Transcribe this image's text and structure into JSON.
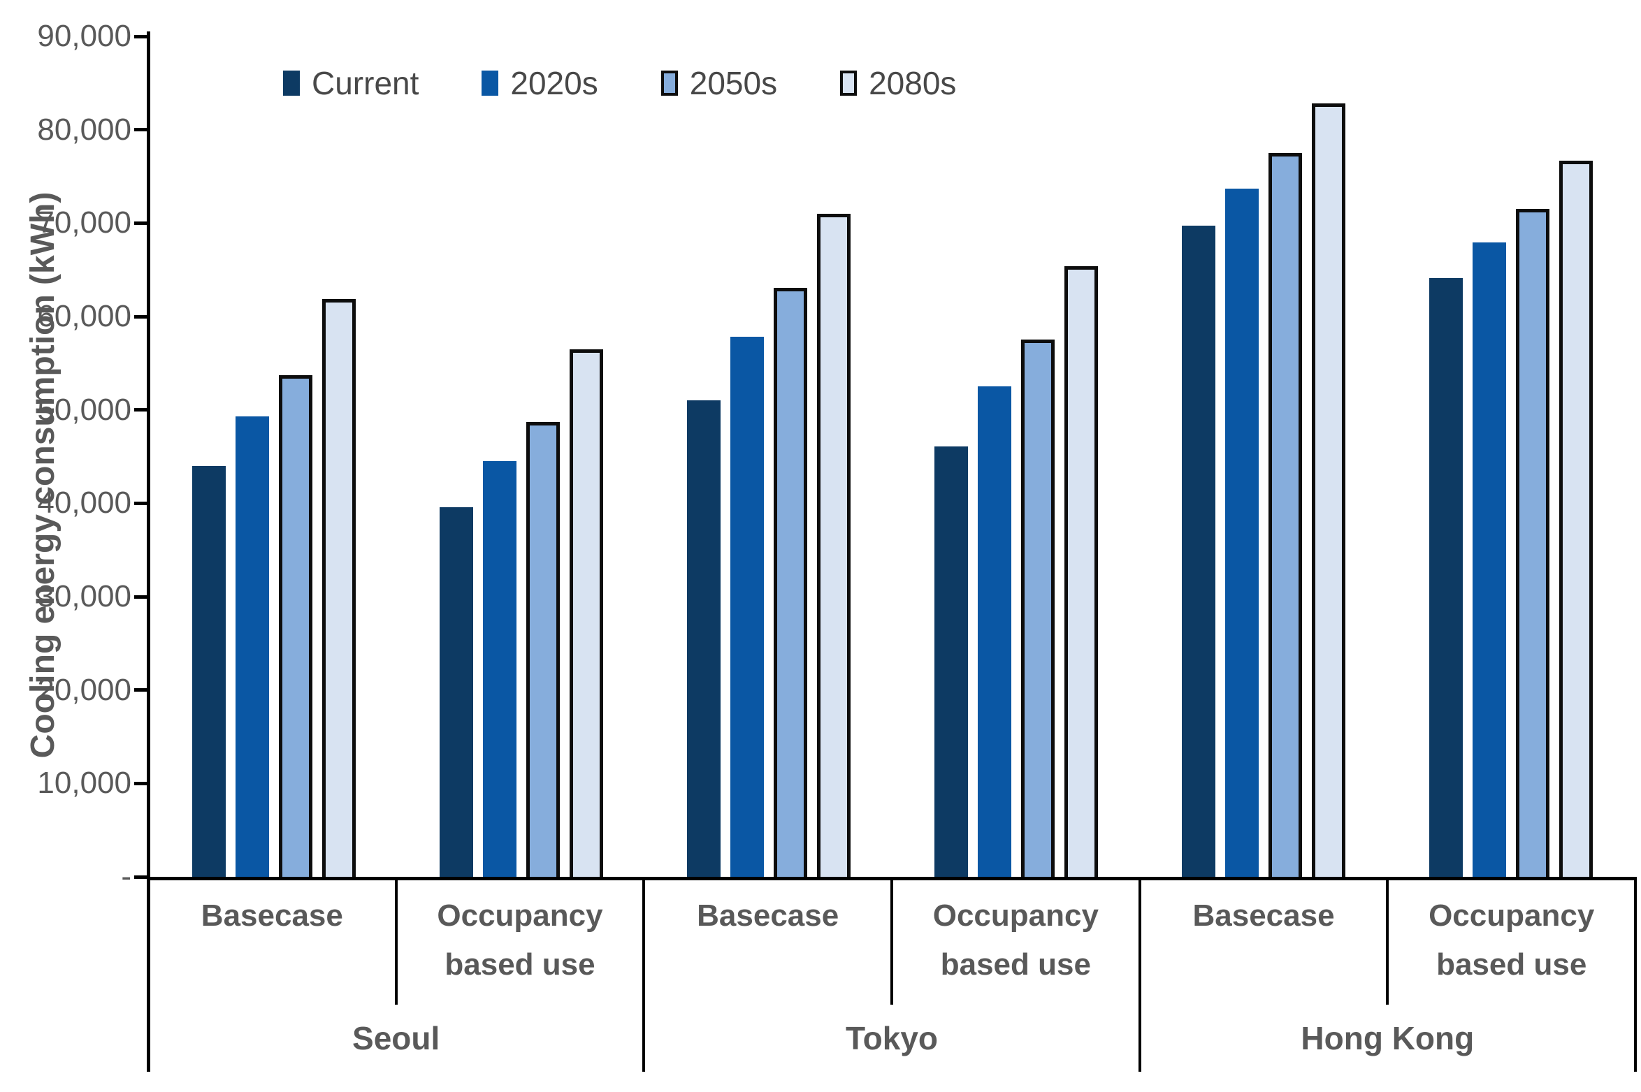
{
  "chart_data": {
    "type": "bar",
    "title": "",
    "ylabel": "Cooling energy consumption (kWh)",
    "ylim": [
      0,
      90000
    ],
    "ytick_step": 10000,
    "grid": false,
    "legend_position": "top-left-inside",
    "yticks": [
      {
        "value": 90000,
        "label": "90,000"
      },
      {
        "value": 80000,
        "label": "80,000"
      },
      {
        "value": 70000,
        "label": "70,000"
      },
      {
        "value": 60000,
        "label": "60,000"
      },
      {
        "value": 50000,
        "label": "50,000"
      },
      {
        "value": 40000,
        "label": "40,000"
      },
      {
        "value": 30000,
        "label": "30,000"
      },
      {
        "value": 20000,
        "label": "20,000"
      },
      {
        "value": 10000,
        "label": "10,000"
      },
      {
        "value": 0,
        "label": "-"
      }
    ],
    "series": [
      {
        "name": "Current",
        "color": "#0d3a63",
        "border": null
      },
      {
        "name": "2020s",
        "color": "#0a57a4",
        "border": null
      },
      {
        "name": "2050s",
        "color": "#86addc",
        "border": "#0d0d0d"
      },
      {
        "name": "2080s",
        "color": "#d8e3f2",
        "border": "#0d0d0d"
      }
    ],
    "cities": [
      {
        "name": "Seoul",
        "scenarios": [
          {
            "label": "Basecase",
            "values": [
              44000,
              49300,
              53700,
              61900
            ]
          },
          {
            "label": "Occupancy based use",
            "values": [
              39600,
              44500,
              48700,
              56500
            ]
          }
        ]
      },
      {
        "name": "Tokyo",
        "scenarios": [
          {
            "label": "Basecase",
            "values": [
              51000,
              57800,
              63100,
              71000
            ]
          },
          {
            "label": "Occupancy based use",
            "values": [
              46100,
              52500,
              57500,
              65400
            ]
          }
        ]
      },
      {
        "name": "Hong Kong",
        "scenarios": [
          {
            "label": "Basecase",
            "values": [
              69700,
              73700,
              77500,
              82800
            ]
          },
          {
            "label": "Occupancy based use",
            "values": [
              64100,
              67900,
              71500,
              76700
            ]
          }
        ]
      }
    ],
    "axis_color": "#000000",
    "text_color": "#595959"
  }
}
